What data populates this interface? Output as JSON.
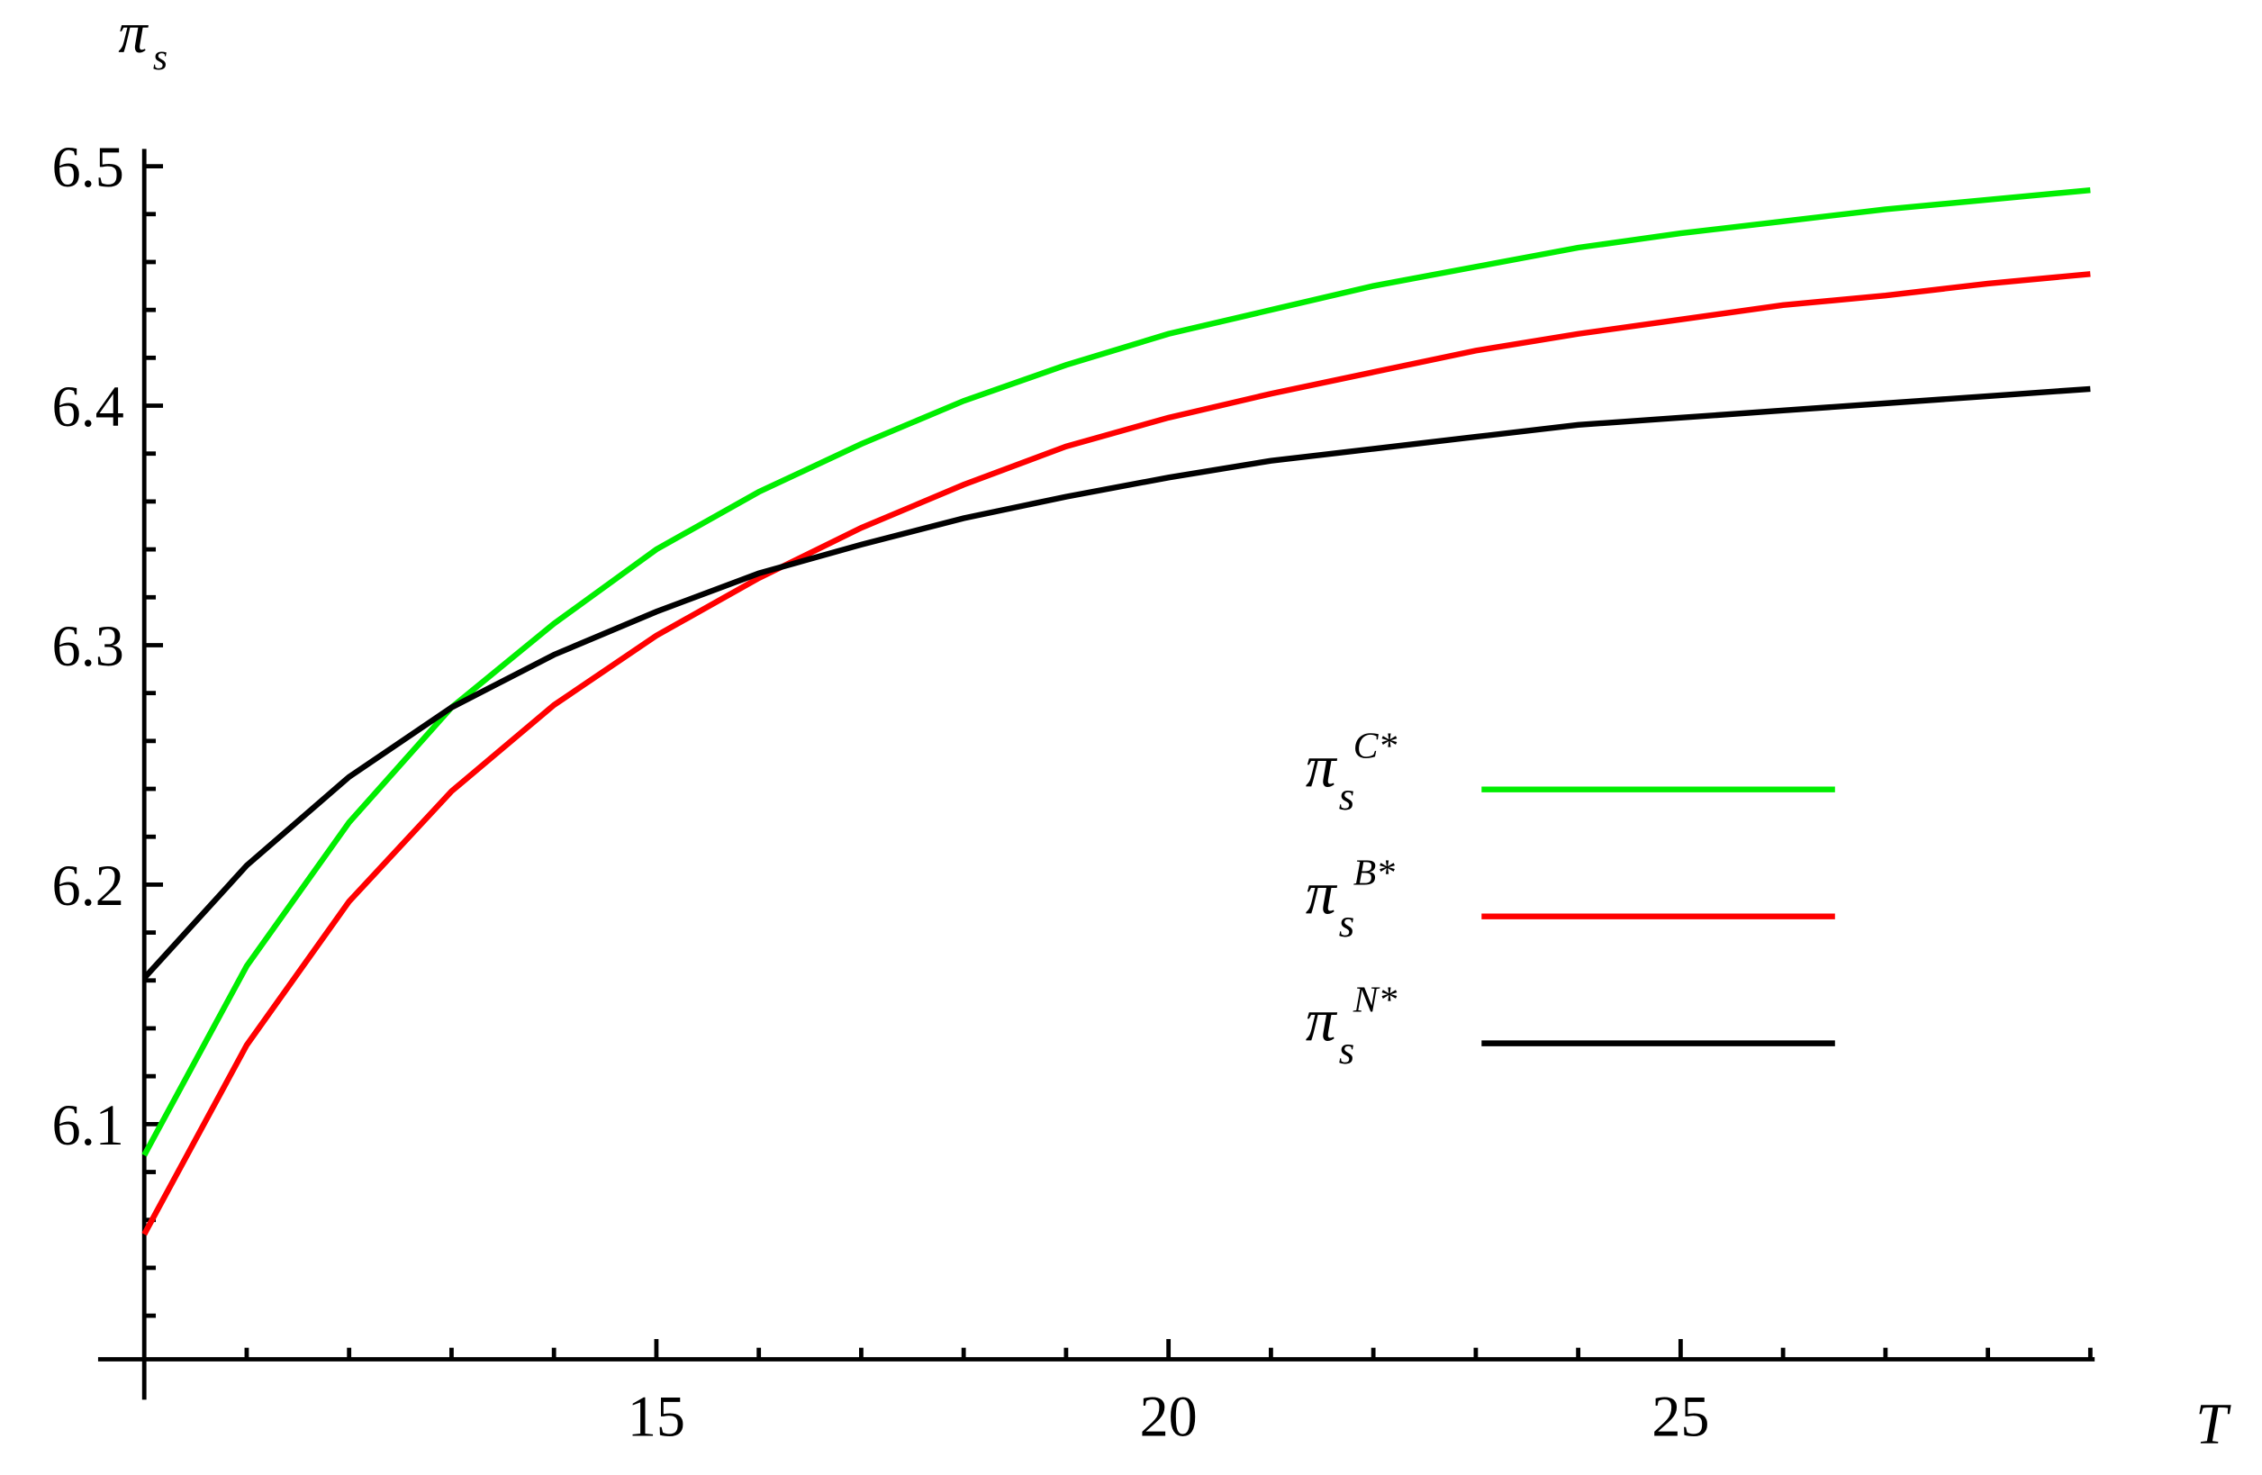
{
  "chart_data": {
    "type": "line",
    "x_label": "T",
    "y_label": "π",
    "y_label_sub": "s",
    "x": [
      10,
      11,
      12,
      13,
      14,
      15,
      16,
      17,
      18,
      19,
      20,
      21,
      22,
      23,
      24,
      25,
      26,
      27,
      28,
      29
    ],
    "series": [
      {
        "name": "π",
        "name_sub": "s",
        "name_sup": "C*",
        "color": "#00ee00",
        "values": [
          6.087,
          6.166,
          6.226,
          6.274,
          6.309,
          6.34,
          6.364,
          6.384,
          6.402,
          6.417,
          6.43,
          6.44,
          6.45,
          6.458,
          6.466,
          6.472,
          6.477,
          6.482,
          6.486,
          6.49
        ]
      },
      {
        "name": "π",
        "name_sub": "s",
        "name_sup": "B*",
        "color": "#ff0000",
        "values": [
          6.054,
          6.133,
          6.193,
          6.239,
          6.275,
          6.304,
          6.328,
          6.349,
          6.367,
          6.383,
          6.395,
          6.405,
          6.414,
          6.423,
          6.43,
          6.436,
          6.442,
          6.446,
          6.451,
          6.455
        ]
      },
      {
        "name": "π",
        "name_sub": "s",
        "name_sup": "N*",
        "color": "#000000",
        "values": [
          6.161,
          6.208,
          6.245,
          6.274,
          6.296,
          6.314,
          6.33,
          6.342,
          6.353,
          6.362,
          6.37,
          6.377,
          6.382,
          6.387,
          6.392,
          6.395,
          6.398,
          6.401,
          6.404,
          6.407
        ]
      }
    ],
    "xlim": [
      10,
      29
    ],
    "ylim": [
      6.0,
      6.5
    ],
    "xticks": [
      15,
      20,
      25
    ],
    "yticks": [
      6.1,
      6.2,
      6.3,
      6.4,
      6.5
    ],
    "xminorticks": [
      11,
      12,
      13,
      14,
      16,
      17,
      18,
      19,
      21,
      22,
      23,
      24,
      26,
      27,
      28,
      29
    ],
    "yminorticks": [
      6.02,
      6.04,
      6.06,
      6.08,
      6.12,
      6.14,
      6.16,
      6.18,
      6.22,
      6.24,
      6.26,
      6.28,
      6.32,
      6.34,
      6.36,
      6.38,
      6.42,
      6.44,
      6.46,
      6.48
    ]
  }
}
